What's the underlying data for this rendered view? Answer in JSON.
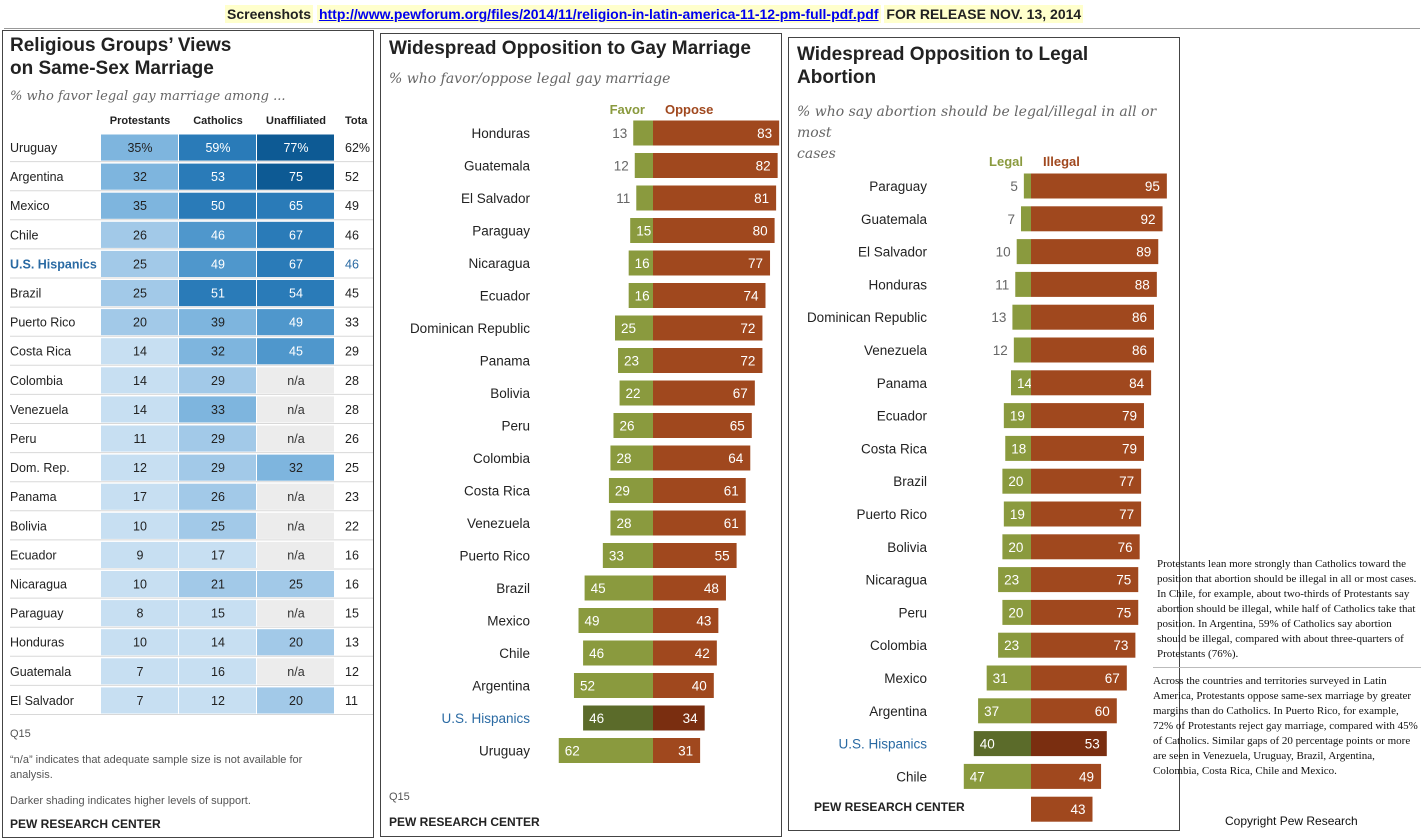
{
  "header": {
    "prefix": "Screenshots",
    "link": "http://www.pewforum.org/files/2014/11/religion-in-latin-america-11-12-pm-full-pdf.pdf",
    "release": "FOR RELEASE NOV. 13, 2014"
  },
  "colors": {
    "favor_green": "#8a9a3e",
    "oppose_brown": "#a0481e",
    "hisp_green": "#5b6b2a",
    "hisp_brown": "#7a2e10",
    "hisp_label": "#2a6aa3"
  },
  "panels": {
    "table": {
      "title_line1": "Religious Groups’ Views",
      "title_line2": "on Same-Sex Marriage",
      "subtitle": "% who favor legal gay marriage among ...",
      "footnote_q": "Q15",
      "footnote_na1": "“n/a” indicates that adequate sample size is not available for",
      "footnote_na2": "analysis.",
      "footnote_shade": "Darker shading indicates higher levels of support.",
      "source": "PEW RESEARCH CENTER"
    },
    "gay": {
      "title": "Widespread Opposition to Gay Marriage",
      "subtitle": "% who favor/oppose legal gay marriage",
      "footnote_q": "Q15",
      "source": "PEW RESEARCH CENTER"
    },
    "abortion": {
      "title_line1": "Widespread Opposition to Legal",
      "title_line2": "Abortion",
      "subtitle_line1": "% who say abortion should be legal/illegal in all or most",
      "subtitle_line2": "cases",
      "source": "PEW RESEARCH CENTER"
    }
  },
  "notes": {
    "note1": "Protestants lean more strongly than Catholics toward the position that abortion should be illegal in all or most cases. In Chile, for example, about two-thirds of Protestants say abortion should be illegal, while half of Catholics take that position. In Argentina, 59% of Catholics say abortion should be illegal, compared with about three-quarters of Protestants (76%).",
    "note2": "Across the countries and territories surveyed in Latin America, Protestants oppose same-sex marriage by greater margins than do Catholics. In Puerto Rico, for example, 72% of Protestants reject gay marriage, compared with 45% of Catholics. Similar gaps of 20 percentage points or more are seen in Venezuela, Uruguay, Brazil, Argentina, Colombia, Costa Rica, Chile and Mexico.",
    "copyright": "Copyright Pew Research"
  },
  "chart_data": [
    {
      "type": "table",
      "columns": [
        "Protestants",
        "Catholics",
        "Unaffiliated",
        "Tota"
      ],
      "highlight_row": "U.S. Hispanics",
      "rows": [
        {
          "label": "Uruguay",
          "values": [
            "35%",
            "59%",
            "77%",
            "62%"
          ]
        },
        {
          "label": "Argentina",
          "values": [
            "32",
            "53",
            "75",
            "52"
          ]
        },
        {
          "label": "Mexico",
          "values": [
            "35",
            "50",
            "65",
            "49"
          ]
        },
        {
          "label": "Chile",
          "values": [
            "26",
            "46",
            "67",
            "46"
          ]
        },
        {
          "label": "U.S. Hispanics",
          "values": [
            "25",
            "49",
            "67",
            "46"
          ]
        },
        {
          "label": "Brazil",
          "values": [
            "25",
            "51",
            "54",
            "45"
          ]
        },
        {
          "label": "Puerto Rico",
          "values": [
            "20",
            "39",
            "49",
            "33"
          ]
        },
        {
          "label": "Costa Rica",
          "values": [
            "14",
            "32",
            "45",
            "29"
          ]
        },
        {
          "label": "Colombia",
          "values": [
            "14",
            "29",
            "n/a",
            "28"
          ]
        },
        {
          "label": "Venezuela",
          "values": [
            "14",
            "33",
            "n/a",
            "28"
          ]
        },
        {
          "label": "Peru",
          "values": [
            "11",
            "29",
            "n/a",
            "26"
          ]
        },
        {
          "label": "Dom. Rep.",
          "values": [
            "12",
            "29",
            "32",
            "25"
          ]
        },
        {
          "label": "Panama",
          "values": [
            "17",
            "26",
            "n/a",
            "23"
          ]
        },
        {
          "label": "Bolivia",
          "values": [
            "10",
            "25",
            "n/a",
            "22"
          ]
        },
        {
          "label": "Ecuador",
          "values": [
            "9",
            "17",
            "n/a",
            "16"
          ]
        },
        {
          "label": "Nicaragua",
          "values": [
            "10",
            "21",
            "25",
            "16"
          ]
        },
        {
          "label": "Paraguay",
          "values": [
            "8",
            "15",
            "n/a",
            "15"
          ]
        },
        {
          "label": "Honduras",
          "values": [
            "10",
            "14",
            "20",
            "13"
          ]
        },
        {
          "label": "Guatemala",
          "values": [
            "7",
            "16",
            "n/a",
            "12"
          ]
        },
        {
          "label": "El Salvador",
          "values": [
            "7",
            "12",
            "20",
            "11"
          ]
        }
      ]
    },
    {
      "type": "bar",
      "orientation": "horizontal-diverging",
      "series_names": [
        "Favor",
        "Oppose"
      ],
      "highlight": "U.S. Hispanics",
      "categories": [
        "Honduras",
        "Guatemala",
        "El Salvador",
        "Paraguay",
        "Nicaragua",
        "Ecuador",
        "Dominican Republic",
        "Panama",
        "Bolivia",
        "Peru",
        "Colombia",
        "Costa Rica",
        "Venezuela",
        "Puerto Rico",
        "Brazil",
        "Mexico",
        "Chile",
        "Argentina",
        "U.S. Hispanics",
        "Uruguay"
      ],
      "series": [
        {
          "name": "Favor",
          "values": [
            13,
            12,
            11,
            15,
            16,
            16,
            25,
            23,
            22,
            26,
            28,
            29,
            28,
            33,
            45,
            49,
            46,
            52,
            46,
            62
          ]
        },
        {
          "name": "Oppose",
          "values": [
            83,
            82,
            81,
            80,
            77,
            74,
            72,
            72,
            67,
            65,
            64,
            61,
            61,
            55,
            48,
            43,
            42,
            40,
            34,
            31
          ]
        }
      ]
    },
    {
      "type": "bar",
      "orientation": "horizontal-diverging",
      "series_names": [
        "Legal",
        "Illegal"
      ],
      "highlight": "U.S. Hispanics",
      "categories": [
        "Paraguay",
        "Guatemala",
        "El Salvador",
        "Honduras",
        "Dominican Republic",
        "Venezuela",
        "Panama",
        "Ecuador",
        "Costa Rica",
        "Brazil",
        "Puerto Rico",
        "Bolivia",
        "Nicaragua",
        "Peru",
        "Colombia",
        "Mexico",
        "Argentina",
        "U.S. Hispanics",
        "Chile",
        ""
      ],
      "series": [
        {
          "name": "Legal",
          "values": [
            5,
            7,
            10,
            11,
            13,
            12,
            14,
            19,
            18,
            20,
            19,
            20,
            23,
            20,
            23,
            31,
            37,
            40,
            47,
            null
          ]
        },
        {
          "name": "Illegal",
          "values": [
            95,
            92,
            89,
            88,
            86,
            86,
            84,
            79,
            79,
            77,
            77,
            76,
            75,
            75,
            73,
            67,
            60,
            53,
            49,
            43
          ]
        }
      ]
    }
  ]
}
